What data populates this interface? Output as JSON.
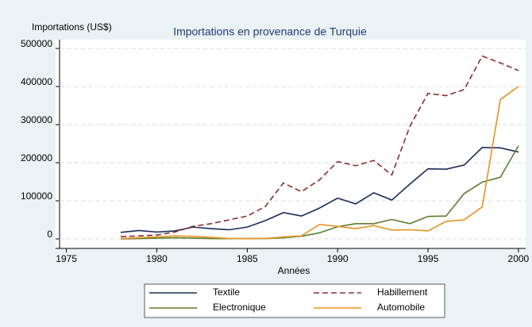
{
  "chart_data": {
    "type": "line",
    "title": "Importations en provenance de Turquie",
    "y_label": "Importations (US$)",
    "x_label": "Années",
    "x": [
      1978,
      1979,
      1980,
      1981,
      1982,
      1983,
      1984,
      1985,
      1986,
      1987,
      1988,
      1989,
      1990,
      1991,
      1992,
      1993,
      1994,
      1995,
      1996,
      1997,
      1998,
      1999,
      2000
    ],
    "series": [
      {
        "name": "Textile",
        "color": "#1a2b5a",
        "style": "solid",
        "values": [
          17000,
          22000,
          18000,
          21000,
          31000,
          27000,
          24000,
          31000,
          48000,
          69000,
          60000,
          81000,
          107000,
          92000,
          121000,
          102000,
          144000,
          184000,
          183000,
          194000,
          240000,
          239000,
          228000
        ]
      },
      {
        "name": "Habillement",
        "color": "#8b2d2d",
        "style": "dashed",
        "values": [
          6000,
          8000,
          10000,
          18000,
          33000,
          40000,
          50000,
          60000,
          85000,
          147000,
          124000,
          155000,
          203000,
          192000,
          206000,
          168000,
          296000,
          382000,
          376000,
          392000,
          480000,
          462000,
          442000
        ]
      },
      {
        "name": "Electronique",
        "color": "#5a7d2e",
        "style": "solid",
        "values": [
          0,
          1000,
          2000,
          3000,
          2000,
          1000,
          500,
          1000,
          1000,
          3000,
          7000,
          16000,
          32000,
          40000,
          40000,
          51000,
          40000,
          59000,
          60000,
          119000,
          149000,
          162000,
          244000
        ]
      },
      {
        "name": "Automobile",
        "color": "#e8901f",
        "style": "solid",
        "values": [
          1000,
          3000,
          5000,
          8000,
          7000,
          4000,
          1000,
          1000,
          1000,
          5000,
          8000,
          38000,
          33000,
          27000,
          35000,
          23000,
          24000,
          21000,
          46000,
          50000,
          84000,
          366000,
          400000
        ]
      }
    ],
    "xlim": [
      1974.4,
      2000.4
    ],
    "xticks": [
      1975,
      1980,
      1985,
      1990,
      1995,
      2000
    ],
    "ylim": [
      -25000,
      523000
    ],
    "yticks": [
      0,
      100000,
      200000,
      300000,
      400000,
      500000
    ],
    "grid": true,
    "legend": "bottom"
  }
}
